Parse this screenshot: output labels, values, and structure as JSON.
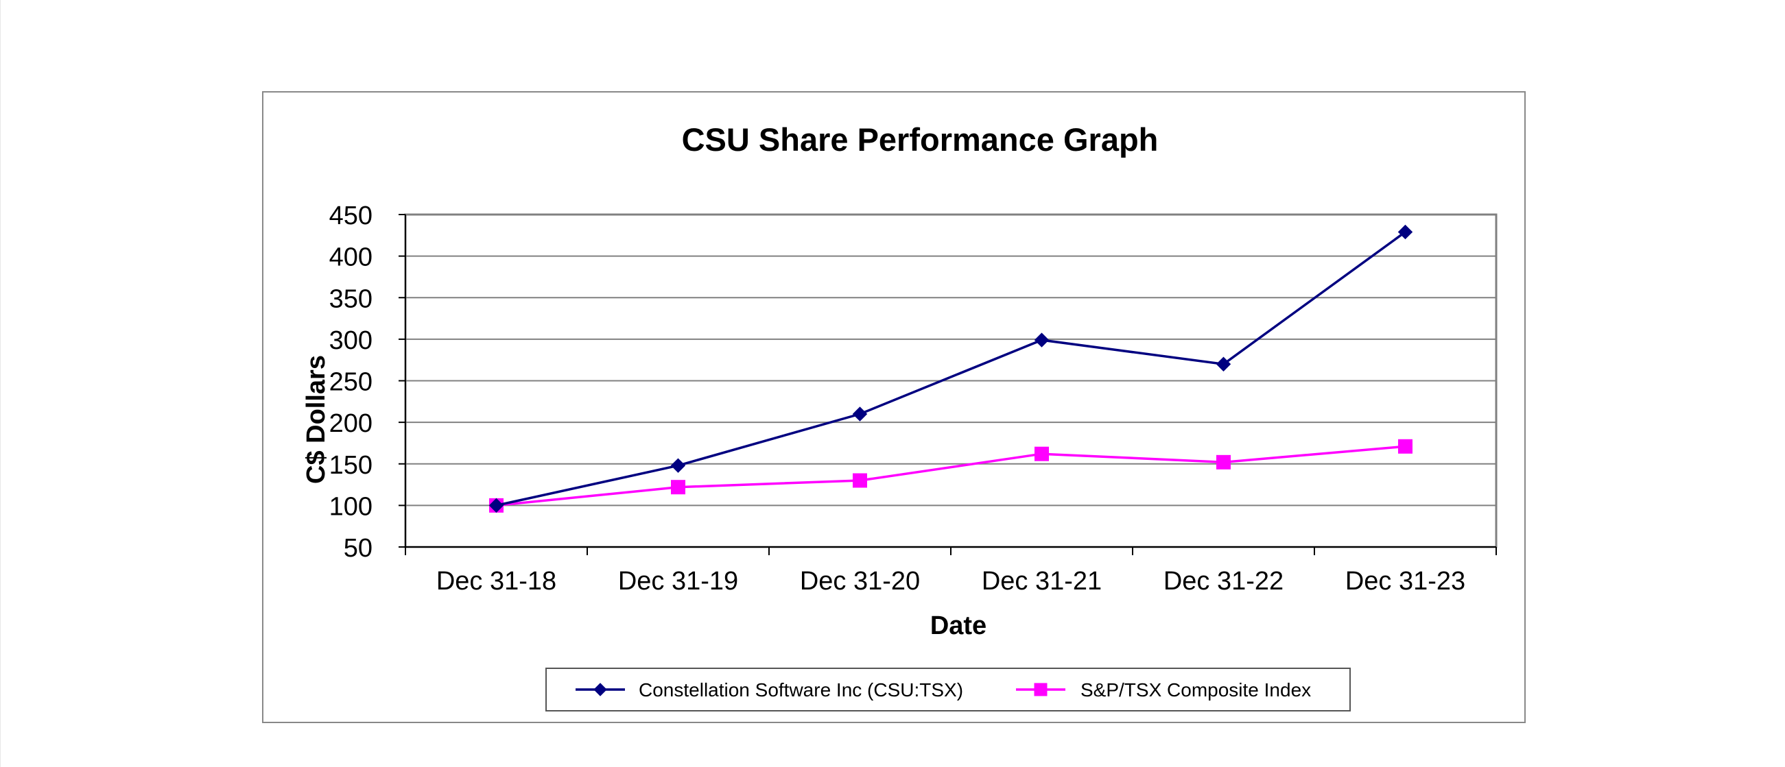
{
  "chart_data": {
    "type": "line",
    "title": "CSU Share Performance Graph",
    "xlabel": "Date",
    "ylabel": "C$ Dollars",
    "categories": [
      "Dec 31-18",
      "Dec 31-19",
      "Dec 31-20",
      "Dec 31-21",
      "Dec 31-22",
      "Dec 31-23"
    ],
    "ylim": [
      50,
      450
    ],
    "yticks": [
      50,
      100,
      150,
      200,
      250,
      300,
      350,
      400,
      450
    ],
    "grid": true,
    "legend_position": "bottom",
    "series": [
      {
        "name": "Constellation Software Inc (CSU:TSX)",
        "values": [
          100,
          148,
          210,
          299,
          270,
          429
        ],
        "color": "#000080",
        "marker": "diamond"
      },
      {
        "name": "S&P/TSX Composite Index",
        "values": [
          100,
          122,
          130,
          162,
          152,
          171
        ],
        "color": "#ff00ff",
        "marker": "square"
      }
    ]
  }
}
